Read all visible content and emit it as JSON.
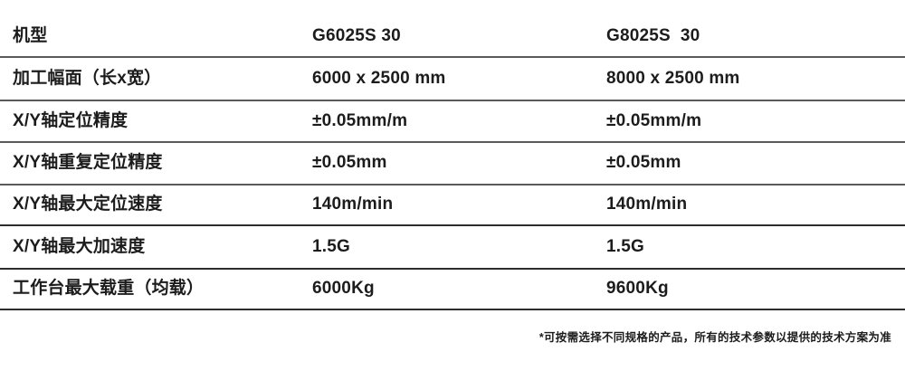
{
  "table": {
    "rows": [
      {
        "label": "机型",
        "col1": "G6025S 30",
        "col2": "G8025S  30"
      },
      {
        "label": "加工幅面（长x宽）",
        "col1": "6000 x 2500 mm",
        "col2": "8000 x 2500 mm"
      },
      {
        "label": "X/Y轴定位精度",
        "col1": "±0.05mm/m",
        "col2": "±0.05mm/m"
      },
      {
        "label": "X/Y轴重复定位精度",
        "col1": "±0.05mm",
        "col2": "±0.05mm"
      },
      {
        "label": "X/Y轴最大定位速度",
        "col1": "140m/min",
        "col2": "140m/min"
      },
      {
        "label": "X/Y轴最大加速度",
        "col1": "1.5G",
        "col2": "1.5G"
      },
      {
        "label": "工作台最大载重（均载）",
        "col1": "6000Kg",
        "col2": "9600Kg"
      }
    ]
  },
  "footnote": "*可按需选择不同规格的产品，所有的技术参数以提供的技术方案为准",
  "colors": {
    "text": "#1c1c1c",
    "divider_light": "#595959",
    "divider_dark": "#2d2d2d",
    "background": "#ffffff"
  }
}
